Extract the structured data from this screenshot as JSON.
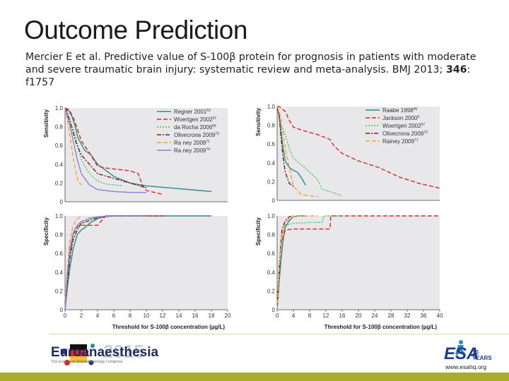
{
  "slide": {
    "title": "Outcome Prediction",
    "citation_pre": "Mercier E et al. Predictive value of S-100β protein for prognosis in patients with moderate and severe traumatic brain injury: systematic review and meta-analysis. BMJ 2013; ",
    "citation_vol": "346",
    "citation_post": ": f1757"
  },
  "footer": {
    "left_brand": "Euroanaesthesia",
    "left_year": "2015",
    "left_sub": "The European Anaesthesiology Congress",
    "right_brand": "ESA",
    "right_years_num": "10",
    "right_years_word": "YEARS",
    "url": "www.esahq.org"
  },
  "colors": {
    "teal": "#2a8a8a",
    "red": "#d62828",
    "green": "#44c35a",
    "darkred": "#7a1a1a",
    "orange": "#f2a33a",
    "purple": "#8b7fd0",
    "panel_bg": "#e8e8ea",
    "footer_accent": "#a9ad2c"
  },
  "chart_data": [
    {
      "id": "left-sensitivity",
      "type": "line",
      "ylabel": "Sensitivity",
      "xlim": [
        0,
        20
      ],
      "ylim": [
        0,
        1
      ],
      "yticks": [
        "0",
        "0.2",
        "0.4",
        "0.6",
        "0.8",
        "1.0"
      ],
      "series": [
        {
          "name": "Regner 2001",
          "ref": "53",
          "color": "#2a8a8a",
          "dash": "solid",
          "x": [
            0,
            0.4,
            0.8,
            1.2,
            1.6,
            2.4,
            3.2,
            4,
            6,
            8,
            10,
            14,
            18
          ],
          "y": [
            1,
            0.98,
            0.92,
            0.82,
            0.68,
            0.55,
            0.5,
            0.4,
            0.27,
            0.2,
            0.17,
            0.14,
            0.11
          ]
        },
        {
          "name": "Woertgen 2002",
          "ref": "57",
          "color": "#d62828",
          "dash": "dashed",
          "x": [
            0,
            0.5,
            1,
            1.5,
            2,
            3,
            4,
            5,
            6,
            8,
            9,
            9.5,
            10,
            12
          ],
          "y": [
            1,
            0.98,
            0.9,
            0.78,
            0.65,
            0.52,
            0.38,
            0.36,
            0.35,
            0.33,
            0.3,
            0.18,
            0.12,
            0.08
          ]
        },
        {
          "name": "da Rocha 2006",
          "ref": "56",
          "color": "#44c35a",
          "dash": "dotted",
          "x": [
            0,
            0.5,
            1,
            1.5,
            2,
            2.5,
            3,
            4,
            5,
            7
          ],
          "y": [
            1,
            0.9,
            0.78,
            0.62,
            0.45,
            0.37,
            0.3,
            0.22,
            0.19,
            0.17
          ]
        },
        {
          "name": "Olivecrona 2009",
          "ref": "73",
          "color": "#7a1a1a",
          "dash": "dashdot",
          "x": [
            0,
            0.2,
            0.6,
            1.4,
            2,
            3,
            4,
            6,
            8,
            10
          ],
          "y": [
            1,
            0.98,
            0.85,
            0.62,
            0.5,
            0.4,
            0.3,
            0.25,
            0.2,
            0.15
          ]
        },
        {
          "name": "Ra ney 2009",
          "ref": "71",
          "color": "#f2a33a",
          "dash": "dashed",
          "x": [
            0,
            0.4,
            0.8,
            1.2,
            1.6,
            2
          ],
          "y": [
            1,
            0.82,
            0.58,
            0.38,
            0.22,
            0.18
          ]
        },
        {
          "name": "Ra ney 2009",
          "ref": "74",
          "color": "#8b7fd0",
          "dash": "solid",
          "x": [
            0,
            0.5,
            1,
            1.5,
            2,
            3,
            4,
            6,
            8,
            10
          ],
          "y": [
            1,
            0.85,
            0.65,
            0.45,
            0.3,
            0.18,
            0.13,
            0.11,
            0.1,
            0.1
          ]
        }
      ]
    },
    {
      "id": "right-sensitivity",
      "type": "line",
      "ylabel": "Sensitivity",
      "xlim": [
        0,
        40
      ],
      "ylim": [
        0,
        1
      ],
      "yticks": [
        "0",
        "0.2",
        "0.4",
        "0.6",
        "0.8",
        "1.0"
      ],
      "series": [
        {
          "name": "Raabe 1998",
          "ref": "46",
          "color": "#2a8a8a",
          "dash": "solid",
          "x": [
            0,
            0.5,
            1,
            1.5,
            2,
            3,
            4,
            5,
            6,
            7
          ],
          "y": [
            1,
            0.9,
            0.72,
            0.55,
            0.42,
            0.35,
            0.32,
            0.3,
            0.24,
            0.16
          ]
        },
        {
          "name": "Jackson 2000",
          "ref": "5",
          "color": "#d62828",
          "dash": "dashed",
          "x": [
            0,
            0.5,
            1,
            2,
            3,
            4,
            6,
            10,
            13,
            14,
            16,
            20,
            25,
            30,
            35,
            40
          ],
          "y": [
            1,
            1,
            0.98,
            0.95,
            0.85,
            0.78,
            0.75,
            0.7,
            0.65,
            0.58,
            0.5,
            0.42,
            0.35,
            0.25,
            0.18,
            0.13
          ]
        },
        {
          "name": "Woertgen 2002",
          "ref": "57",
          "color": "#44c35a",
          "dash": "dotted",
          "x": [
            0,
            1,
            2,
            3,
            4,
            6,
            8,
            10,
            11,
            14,
            16
          ],
          "y": [
            1,
            0.8,
            0.7,
            0.55,
            0.45,
            0.38,
            0.3,
            0.22,
            0.12,
            0.08,
            0.05
          ]
        },
        {
          "name": "Olivecrona 2009",
          "ref": "73",
          "color": "#7a1a1a",
          "dash": "dashdot",
          "x": [
            0,
            0.5,
            1,
            1.5,
            2,
            3,
            4
          ],
          "y": [
            1,
            0.9,
            0.65,
            0.45,
            0.3,
            0.18,
            0.15
          ]
        },
        {
          "name": "Rainey 2009",
          "ref": "71",
          "color": "#f2a33a",
          "dash": "dashed",
          "x": [
            0,
            0.5,
            1,
            2,
            3,
            4,
            6,
            8,
            10
          ],
          "y": [
            1,
            0.95,
            0.85,
            0.55,
            0.35,
            0.15,
            0.06,
            0.05,
            0.04
          ]
        }
      ]
    },
    {
      "id": "left-specificity",
      "type": "line",
      "ylabel": "Specificity",
      "xlabel": "Threshold for S-100β concentration (µg/L)",
      "xlim": [
        0,
        20
      ],
      "ylim": [
        0,
        1
      ],
      "xticks": [
        "0",
        "2",
        "4",
        "6",
        "8",
        "10",
        "12",
        "14",
        "16",
        "18",
        "20"
      ],
      "yticks": [
        "0",
        "0.2",
        "0.4",
        "0.6",
        "0.8",
        "1.0"
      ],
      "series": [
        {
          "name": "Regner 2001",
          "color": "#2a8a8a",
          "dash": "solid",
          "x": [
            0,
            0.3,
            0.6,
            1,
            1.5,
            2,
            2.5,
            3,
            4,
            5,
            6,
            10,
            18
          ],
          "y": [
            0,
            0.25,
            0.45,
            0.65,
            0.8,
            0.85,
            0.88,
            0.92,
            0.97,
            1,
            1,
            1,
            1
          ]
        },
        {
          "name": "Woertgen 2002",
          "color": "#d62828",
          "dash": "dashed",
          "x": [
            0,
            0.3,
            0.6,
            1,
            1.5,
            2,
            4,
            5,
            10,
            12
          ],
          "y": [
            0,
            0.35,
            0.6,
            0.8,
            0.88,
            0.9,
            0.9,
            1,
            1,
            1
          ]
        },
        {
          "name": "da Rocha 2006",
          "color": "#44c35a",
          "dash": "dotted",
          "x": [
            0,
            0.4,
            0.8,
            1.2,
            2,
            3,
            5,
            7
          ],
          "y": [
            0,
            0.4,
            0.7,
            0.85,
            0.93,
            0.98,
            1,
            1
          ]
        },
        {
          "name": "Olivecrona 2009",
          "color": "#7a1a1a",
          "dash": "dashdot",
          "x": [
            0,
            0.3,
            0.6,
            1,
            1.5,
            2,
            4,
            6,
            10
          ],
          "y": [
            0,
            0.3,
            0.55,
            0.75,
            0.85,
            0.92,
            0.98,
            1,
            1
          ]
        },
        {
          "name": "Ra ney 2009",
          "color": "#f2a33a",
          "dash": "dashed",
          "x": [
            0,
            0.3,
            0.6,
            1,
            1.5,
            2
          ],
          "y": [
            0.1,
            0.45,
            0.75,
            0.9,
            0.97,
            1
          ]
        },
        {
          "name": "Ra ney 2009",
          "color": "#8b7fd0",
          "dash": "solid",
          "x": [
            0,
            0.3,
            0.6,
            1,
            1.5,
            2,
            3,
            4,
            6,
            10
          ],
          "y": [
            0,
            0.4,
            0.65,
            0.82,
            0.9,
            0.94,
            0.97,
            0.99,
            1,
            1
          ]
        }
      ]
    },
    {
      "id": "right-specificity",
      "type": "line",
      "ylabel": "Specificity",
      "xlabel": "Threshold for S-100β concentration (µg/L)",
      "xlim": [
        0,
        40
      ],
      "ylim": [
        0,
        1
      ],
      "xticks": [
        "0",
        "4",
        "8",
        "12",
        "16",
        "20",
        "24",
        "28",
        "32",
        "36",
        "40"
      ],
      "yticks": [
        "0",
        "0.2",
        "0.4",
        "0.6",
        "0.8",
        "1.0"
      ],
      "series": [
        {
          "name": "Raabe 1998",
          "color": "#2a8a8a",
          "dash": "solid",
          "x": [
            0,
            0.5,
            1,
            1.5,
            2,
            3,
            4,
            5,
            7
          ],
          "y": [
            0,
            0.3,
            0.55,
            0.75,
            0.88,
            0.95,
            0.99,
            1,
            1
          ]
        },
        {
          "name": "Jackson 2000",
          "color": "#d62828",
          "dash": "dashed",
          "x": [
            0,
            0.5,
            1,
            2,
            4,
            6,
            10,
            13,
            13.2,
            16,
            40
          ],
          "y": [
            0,
            0.4,
            0.7,
            0.85,
            0.86,
            0.86,
            0.86,
            0.86,
            1,
            1,
            1
          ]
        },
        {
          "name": "Woertgen 2002",
          "color": "#44c35a",
          "dash": "dotted",
          "x": [
            0,
            0.5,
            1,
            2,
            4,
            8,
            11,
            11.5,
            16
          ],
          "y": [
            0,
            0.4,
            0.75,
            0.9,
            0.92,
            0.93,
            0.93,
            1,
            1
          ]
        },
        {
          "name": "Olivecrona 2009",
          "color": "#7a1a1a",
          "dash": "dashdot",
          "x": [
            0,
            0.4,
            0.8,
            1.2,
            2,
            3,
            4
          ],
          "y": [
            0,
            0.35,
            0.65,
            0.85,
            0.95,
            0.99,
            1
          ]
        },
        {
          "name": "Rainey 2009",
          "color": "#f2a33a",
          "dash": "dashed",
          "x": [
            0,
            0.5,
            1,
            2,
            3,
            4,
            6,
            10
          ],
          "y": [
            0,
            0.45,
            0.75,
            0.92,
            0.97,
            0.99,
            1,
            1
          ]
        }
      ]
    }
  ]
}
